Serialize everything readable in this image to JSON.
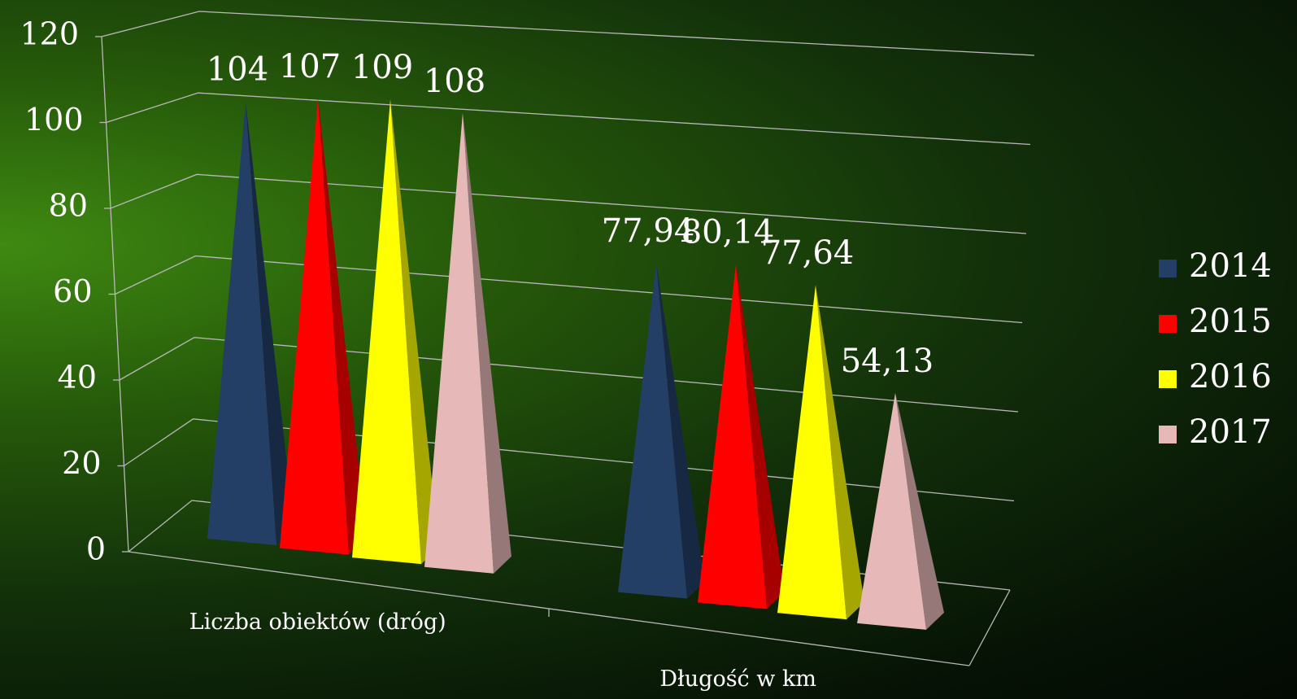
{
  "chart_data": {
    "type": "pyramid3d",
    "categories": [
      "Liczba obiektów (dróg)",
      "Długość w km"
    ],
    "series": [
      {
        "name": "2014",
        "color": "#243f66",
        "values": [
          104,
          77.94
        ],
        "value_labels": [
          "104",
          "77,94"
        ]
      },
      {
        "name": "2015",
        "color": "#ff0000",
        "values": [
          107,
          80.14
        ],
        "value_labels": [
          "107",
          "80,14"
        ]
      },
      {
        "name": "2016",
        "color": "#ffff00",
        "values": [
          109,
          77.64
        ],
        "value_labels": [
          "109",
          "77,64"
        ]
      },
      {
        "name": "2017",
        "color": "#e6b9b8",
        "values": [
          108,
          54.13
        ],
        "value_labels": [
          "108",
          "54,13"
        ]
      }
    ],
    "ylim": [
      0,
      120
    ],
    "yticks": [
      0,
      20,
      40,
      60,
      80,
      100,
      120
    ],
    "grid": true,
    "legend": "right"
  }
}
